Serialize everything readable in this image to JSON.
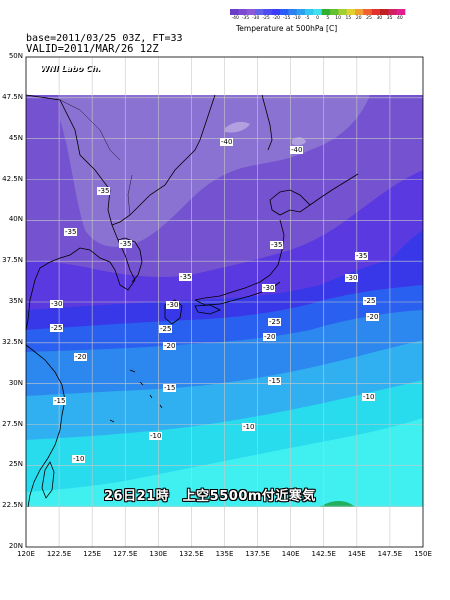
{
  "header": {
    "base_line": "base=2011/03/25 03Z, FT=33",
    "valid_line": "VALID=2011/MAR/26 12Z"
  },
  "legend": {
    "title": "Temperature at 500hPa [C]",
    "ticks": [
      "-40",
      "-35",
      "-30",
      "-25",
      "-20",
      "-15",
      "-10",
      "-5",
      "0",
      "5",
      "10",
      "15",
      "20",
      "25",
      "30",
      "35",
      "40"
    ],
    "colors": [
      "#6a3cc8",
      "#7a4ad0",
      "#8a5ad8",
      "#6060e8",
      "#4c4cf0",
      "#3c3cf8",
      "#2a5cf8",
      "#2c80f0",
      "#2aa0ee",
      "#30c8f0",
      "#40e0f0",
      "#30b030",
      "#60c030",
      "#a0d030",
      "#e0d030",
      "#f0a030",
      "#f06030",
      "#e03030",
      "#c02020",
      "#d02060",
      "#e02090"
    ]
  },
  "brand": {
    "label": "WNI Labo Ch."
  },
  "caption": {
    "text": "26日21時　上空5500m付近寒気"
  },
  "axes": {
    "lat_labels": [
      "50N",
      "47.5N",
      "45N",
      "42.5N",
      "40N",
      "37.5N",
      "35N",
      "32.5N",
      "30N",
      "27.5N",
      "25N",
      "22.5N",
      "20N"
    ],
    "lon_labels": [
      "120E",
      "122.5E",
      "125E",
      "127.5E",
      "130E",
      "132.5E",
      "135E",
      "137.5E",
      "140E",
      "142.5E",
      "145E",
      "147.5E",
      "150E"
    ]
  },
  "contour_labels": [
    {
      "text": "-40"
    },
    {
      "text": "-40"
    },
    {
      "text": "-35"
    },
    {
      "text": "-35"
    },
    {
      "text": "-35"
    },
    {
      "text": "-35"
    },
    {
      "text": "-35"
    },
    {
      "text": "-35"
    },
    {
      "text": "-30"
    },
    {
      "text": "-30"
    },
    {
      "text": "-30"
    },
    {
      "text": "-30"
    },
    {
      "text": "-25"
    },
    {
      "text": "-25"
    },
    {
      "text": "-25"
    },
    {
      "text": "-25"
    },
    {
      "text": "-20"
    },
    {
      "text": "-20"
    },
    {
      "text": "-20"
    },
    {
      "text": "-20"
    },
    {
      "text": "-15"
    },
    {
      "text": "-15"
    },
    {
      "text": "-15"
    },
    {
      "text": "-10"
    },
    {
      "text": "-10"
    },
    {
      "text": "-10"
    },
    {
      "text": "-10"
    }
  ],
  "colors": {
    "band_m40": "#8a72d2",
    "band_m35": "#7552d0",
    "band_m30": "#5a3ae0",
    "band_m25": "#3838e8",
    "band_m20": "#2a60f0",
    "band_m15": "#2c88ee",
    "band_m10": "#30b0f0",
    "band_m5": "#28dcee",
    "band_0": "#40f0f0",
    "no_data": "#ffffff"
  }
}
